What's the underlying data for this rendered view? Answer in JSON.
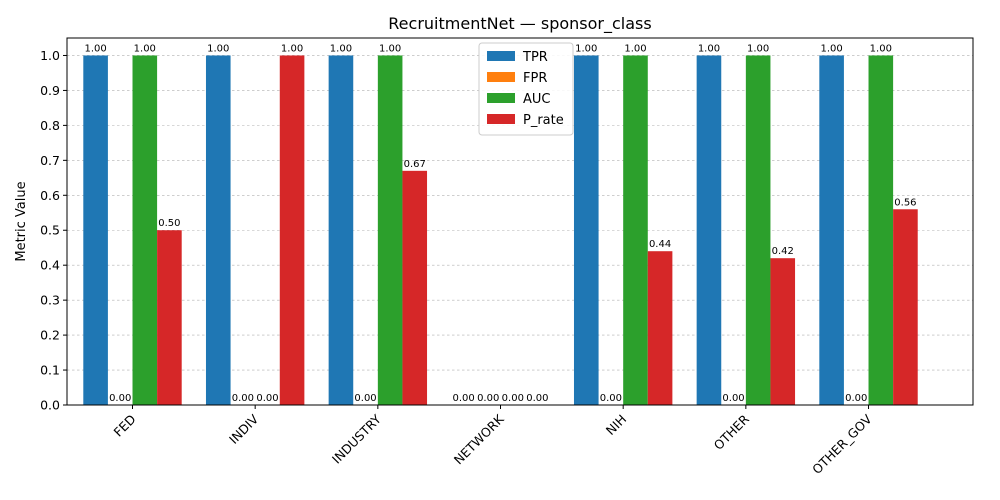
{
  "chart_data": {
    "type": "bar",
    "title": "RecruitmentNet — sponsor_class",
    "xlabel": "",
    "ylabel": "Metric Value",
    "ylim": [
      0,
      1.05
    ],
    "yticks": [
      "0.0",
      "0.1",
      "0.2",
      "0.3",
      "0.4",
      "0.5",
      "0.6",
      "0.7",
      "0.8",
      "0.9",
      "1.0"
    ],
    "grid": "y",
    "legend_position": "top-center",
    "categories": [
      "FED",
      "INDIV",
      "INDUSTRY",
      "NETWORK",
      "NIH",
      "OTHER",
      "OTHER_GOV"
    ],
    "series": [
      {
        "name": "TPR",
        "color": "#1f77b4",
        "values": [
          1.0,
          1.0,
          1.0,
          0.0,
          1.0,
          1.0,
          1.0
        ],
        "labels": [
          "1.00",
          "1.00",
          "1.00",
          "0.00",
          "1.00",
          "1.00",
          "1.00"
        ]
      },
      {
        "name": "FPR",
        "color": "#ff7f0e",
        "values": [
          0.0,
          0.0,
          0.0,
          0.0,
          0.0,
          0.0,
          0.0
        ],
        "labels": [
          "0.00",
          "0.00",
          "0.00",
          "0.00",
          "0.00",
          "0.00",
          "0.00"
        ]
      },
      {
        "name": "AUC",
        "color": "#2ca02c",
        "values": [
          1.0,
          null,
          1.0,
          null,
          1.0,
          1.0,
          1.0
        ],
        "labels": [
          "1.00",
          "0.00",
          "1.00",
          "0.00",
          "1.00",
          "1.00",
          "1.00"
        ]
      },
      {
        "name": "P_rate",
        "color": "#d62728",
        "values": [
          0.5,
          1.0,
          0.67,
          null,
          0.44,
          0.42,
          0.56
        ],
        "labels": [
          "0.50",
          "1.00",
          "0.67",
          "0.00",
          "0.44",
          "0.42",
          "0.56"
        ]
      }
    ]
  }
}
